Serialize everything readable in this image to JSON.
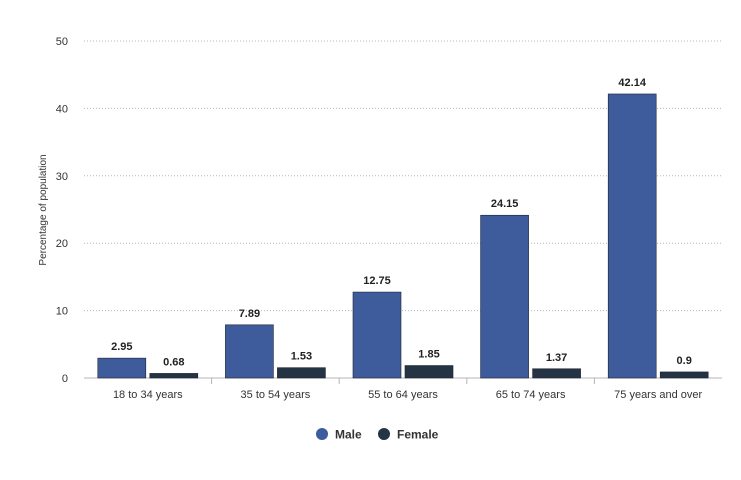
{
  "chart_data": {
    "type": "bar",
    "title": "",
    "xlabel": "",
    "ylabel": "Percentage of population",
    "ylim": [
      0,
      50
    ],
    "yticks": [
      0,
      10,
      20,
      30,
      40,
      50
    ],
    "grid": true,
    "legend_position": "bottom-center",
    "categories": [
      "18 to 34 years",
      "35 to 54 years",
      "55 to 64 years",
      "65 to 74 years",
      "75 years and over"
    ],
    "series": [
      {
        "name": "Male",
        "color": "#3e5b9c",
        "values": [
          2.95,
          7.89,
          12.75,
          24.15,
          42.14
        ]
      },
      {
        "name": "Female",
        "color": "#253444",
        "values": [
          0.68,
          1.53,
          1.85,
          1.37,
          0.9
        ]
      }
    ]
  }
}
